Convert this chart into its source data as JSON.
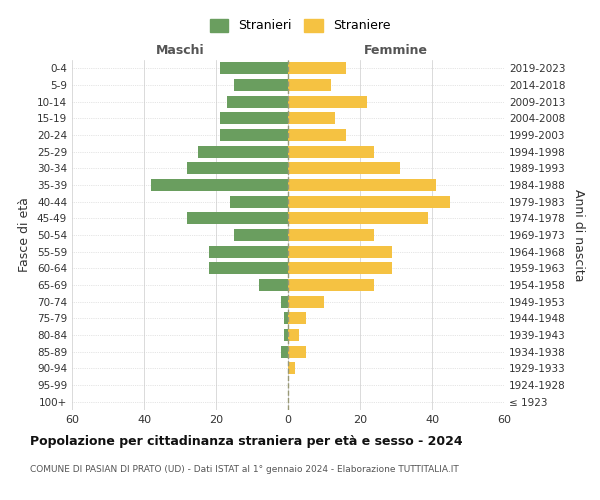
{
  "age_groups": [
    "100+",
    "95-99",
    "90-94",
    "85-89",
    "80-84",
    "75-79",
    "70-74",
    "65-69",
    "60-64",
    "55-59",
    "50-54",
    "45-49",
    "40-44",
    "35-39",
    "30-34",
    "25-29",
    "20-24",
    "15-19",
    "10-14",
    "5-9",
    "0-4"
  ],
  "birth_years": [
    "≤ 1923",
    "1924-1928",
    "1929-1933",
    "1934-1938",
    "1939-1943",
    "1944-1948",
    "1949-1953",
    "1954-1958",
    "1959-1963",
    "1964-1968",
    "1969-1973",
    "1974-1978",
    "1979-1983",
    "1984-1988",
    "1989-1993",
    "1994-1998",
    "1999-2003",
    "2004-2008",
    "2009-2013",
    "2014-2018",
    "2019-2023"
  ],
  "maschi": [
    0,
    0,
    0,
    2,
    1,
    1,
    2,
    8,
    22,
    22,
    15,
    28,
    16,
    38,
    28,
    25,
    19,
    19,
    17,
    15,
    19
  ],
  "femmine": [
    0,
    0,
    2,
    5,
    3,
    5,
    10,
    24,
    29,
    29,
    24,
    39,
    45,
    41,
    31,
    24,
    16,
    13,
    22,
    12,
    16
  ],
  "color_maschi": "#6a9e5f",
  "color_femmine": "#f5c242",
  "title": "Popolazione per cittadinanza straniera per età e sesso - 2024",
  "subtitle": "COMUNE DI PASIAN DI PRATO (UD) - Dati ISTAT al 1° gennaio 2024 - Elaborazione TUTTITALIA.IT",
  "ylabel_left": "Fasce di età",
  "ylabel_right": "Anni di nascita",
  "legend_maschi": "Stranieri",
  "legend_femmine": "Straniere",
  "header_maschi": "Maschi",
  "header_femmine": "Femmine",
  "xlim": 60,
  "background_color": "#ffffff",
  "grid_color": "#cccccc",
  "dashed_color": "#999977"
}
